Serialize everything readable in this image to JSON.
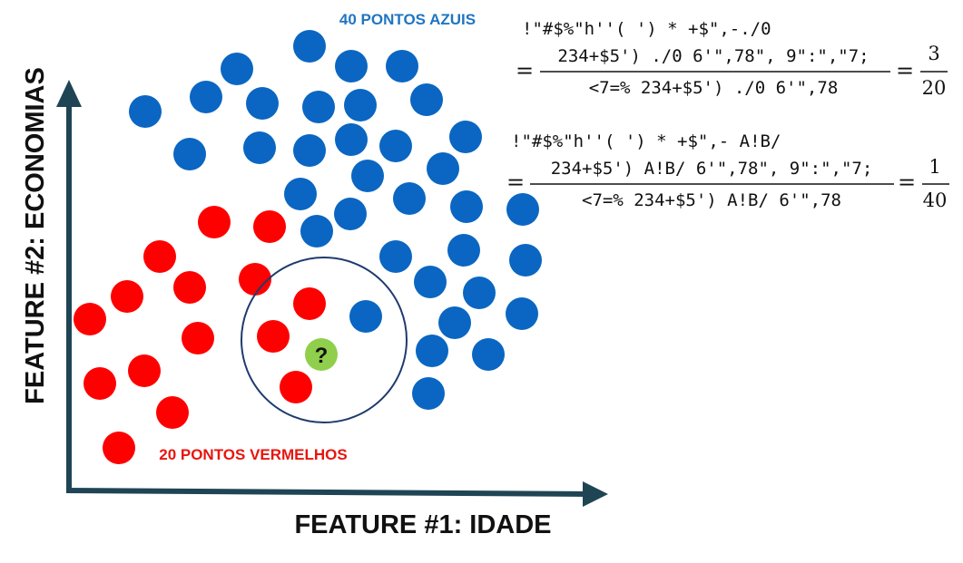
{
  "colors": {
    "blue": "#0a66c2",
    "red": "#ff0000",
    "green": "#8fcf4b",
    "axis": "#1f4555",
    "circle": "#1f3b6e",
    "label_blue": "#1f75c2",
    "label_red": "#e8150f"
  },
  "labels": {
    "blue_count": "40 PONTOS AZUIS",
    "red_count": "20 PONTOS VERMELHOS",
    "x_axis": "FEATURE #1: IDADE",
    "y_axis": "FEATURE #2: ECONOMIAS",
    "query_mark": "?"
  },
  "formula_red": {
    "title": "!\"#$%\"h''( ') * +$\",-./0",
    "numerator": "234+$5') ./0 6'\",78\", 9\":\",\"7;",
    "denominator": "<7=% 234+$5') ./0 6'\",78",
    "result_num": "3",
    "result_den": "20"
  },
  "formula_blue": {
    "title": "!\"#$%\"h''( ') * +$\",- A!B/",
    "numerator": "234+$5') A!B/ 6'\",78\", 9\":\",\"7;",
    "denominator": "<7=% 234+$5') A!B/ 6'\",78",
    "result_num": "1",
    "result_den": "40"
  }
}
